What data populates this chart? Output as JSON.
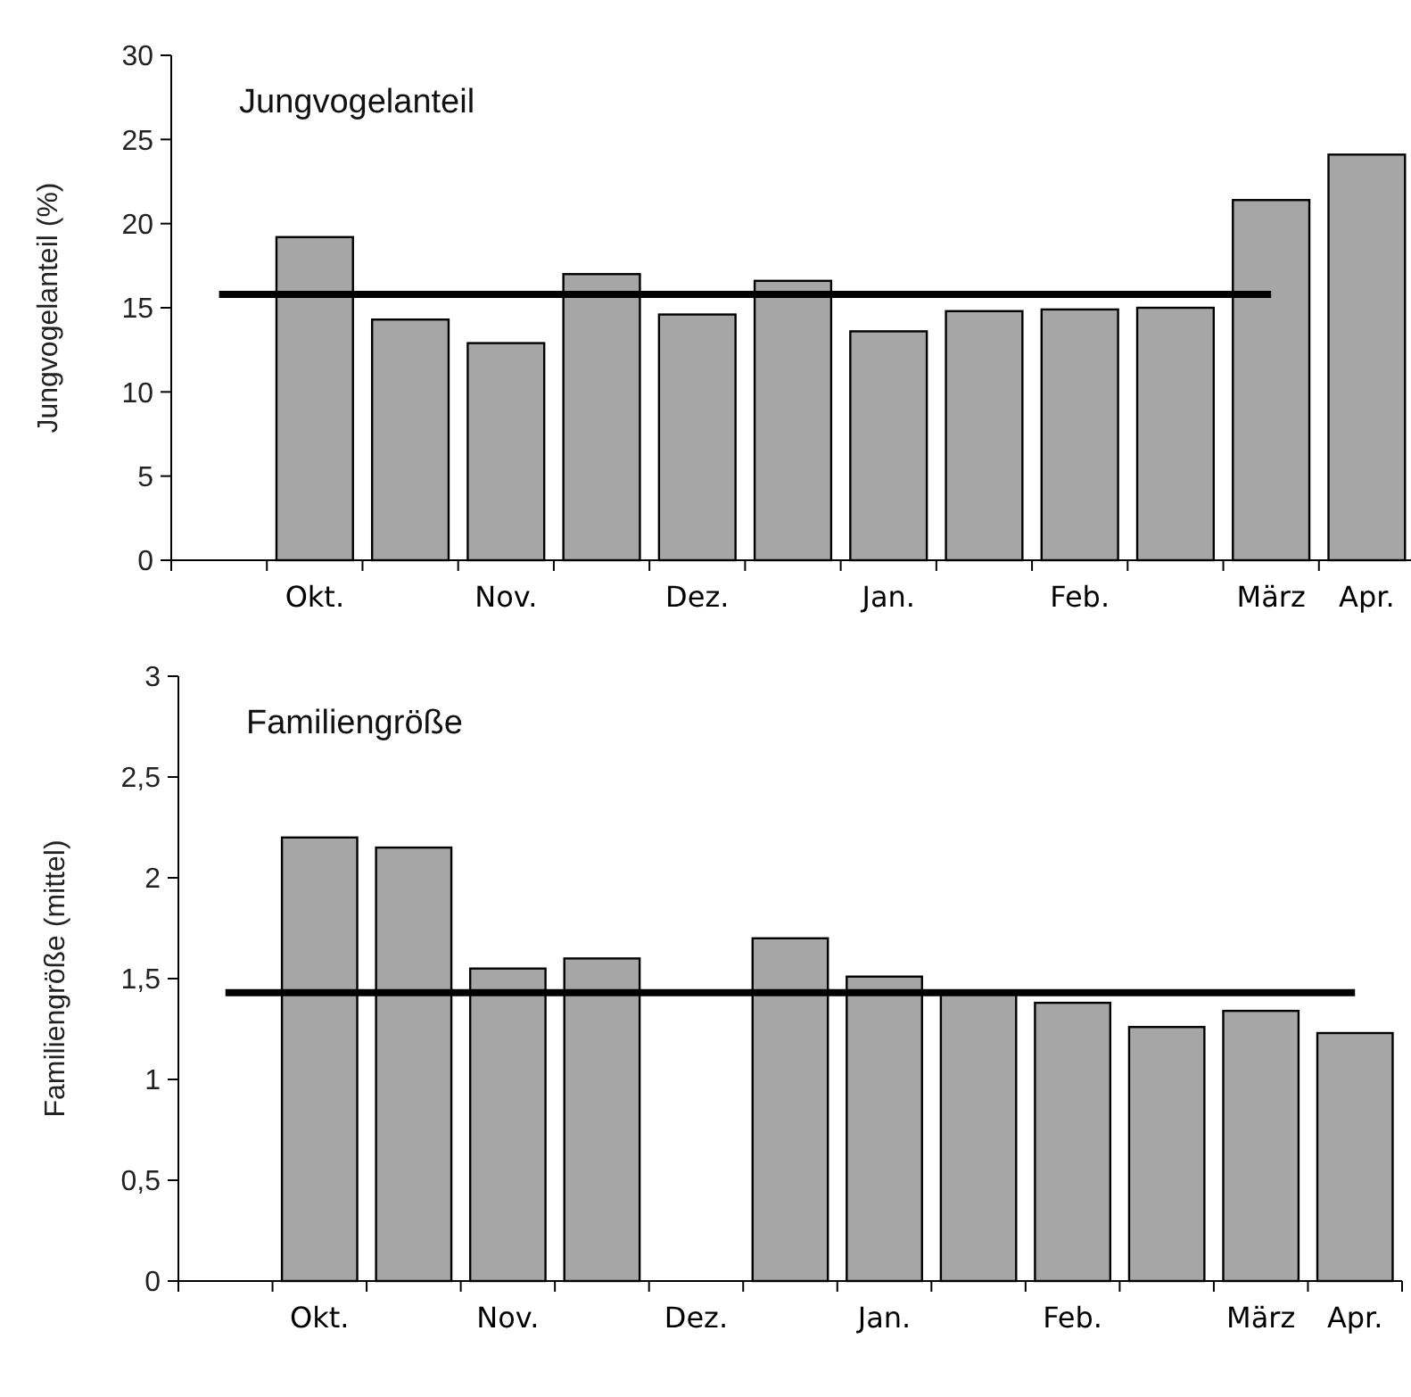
{
  "chart_data": [
    {
      "type": "bar",
      "title": "Jungvogelanteil",
      "ylabel": "Jungvogelanteil (%)",
      "categories": [
        null,
        "Okt.",
        null,
        "Nov.",
        null,
        "Dez.",
        null,
        "Jan.",
        null,
        "Feb.",
        null,
        "März",
        "Apr."
      ],
      "values": [
        null,
        19.2,
        14.3,
        12.9,
        17.0,
        14.6,
        16.6,
        13.6,
        14.8,
        14.9,
        15.0,
        21.4,
        24.1
      ],
      "color": "#a6a6a6",
      "ylim": [
        0,
        30
      ],
      "yticks": [
        0,
        5,
        10,
        15,
        20,
        25,
        30
      ],
      "grid": false,
      "ref_lines": [
        {
          "axis": "y",
          "value": 15.8,
          "color": "#000000"
        }
      ]
    },
    {
      "type": "bar",
      "title": "Familiengröße",
      "ylabel": "Familiengröße (mittel)",
      "categories": [
        null,
        "Okt.",
        null,
        "Nov.",
        null,
        "Dez.",
        null,
        "Jan.",
        null,
        "Feb.",
        null,
        "März",
        "Apr."
      ],
      "values": [
        null,
        2.2,
        2.15,
        1.55,
        1.6,
        null,
        1.7,
        1.51,
        1.43,
        1.38,
        1.26,
        1.34,
        1.23
      ],
      "color": "#a6a6a6",
      "ylim": [
        0,
        3
      ],
      "yticks": [
        0,
        {
          "value": 0.5,
          "label": "0,5"
        },
        1,
        {
          "value": 1.5,
          "label": "1,5"
        },
        2,
        {
          "value": 2.5,
          "label": "2,5"
        },
        3
      ],
      "grid": false,
      "ref_lines": [
        {
          "axis": "y",
          "value": 1.43,
          "color": "#000000"
        }
      ]
    }
  ]
}
